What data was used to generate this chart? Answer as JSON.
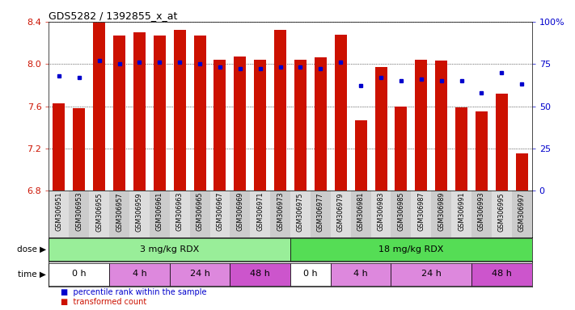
{
  "title": "GDS5282 / 1392855_x_at",
  "samples": [
    "GSM306951",
    "GSM306953",
    "GSM306955",
    "GSM306957",
    "GSM306959",
    "GSM306961",
    "GSM306963",
    "GSM306965",
    "GSM306967",
    "GSM306969",
    "GSM306971",
    "GSM306973",
    "GSM306975",
    "GSM306977",
    "GSM306979",
    "GSM306981",
    "GSM306983",
    "GSM306985",
    "GSM306987",
    "GSM306989",
    "GSM306991",
    "GSM306993",
    "GSM306995",
    "GSM306997"
  ],
  "transformed_count": [
    7.63,
    7.58,
    8.39,
    8.27,
    8.3,
    8.27,
    8.32,
    8.27,
    8.04,
    8.07,
    8.04,
    8.32,
    8.04,
    8.06,
    8.28,
    7.47,
    7.97,
    7.6,
    8.04,
    8.03,
    7.59,
    7.55,
    7.72,
    7.15
  ],
  "percentile_rank": [
    68,
    67,
    77,
    75,
    76,
    76,
    76,
    75,
    73,
    72,
    72,
    73,
    73,
    72,
    76,
    62,
    67,
    65,
    66,
    65,
    65,
    58,
    70,
    63
  ],
  "ylim_left": [
    6.8,
    8.4
  ],
  "ylim_right": [
    0,
    100
  ],
  "yticks_left": [
    6.8,
    7.2,
    7.6,
    8.0,
    8.4
  ],
  "yticks_right": [
    0,
    25,
    50,
    75,
    100
  ],
  "bar_color": "#cc1100",
  "dot_color": "#0000cc",
  "background_color": "#ffffff",
  "dose_groups": [
    {
      "label": "3 mg/kg RDX",
      "start": 0,
      "end": 11,
      "color": "#99ee99"
    },
    {
      "label": "18 mg/kg RDX",
      "start": 12,
      "end": 23,
      "color": "#55dd55"
    }
  ],
  "time_groups": [
    {
      "label": "0 h",
      "start": 0,
      "end": 2,
      "color": "#ffffff"
    },
    {
      "label": "4 h",
      "start": 3,
      "end": 5,
      "color": "#dd88dd"
    },
    {
      "label": "24 h",
      "start": 6,
      "end": 8,
      "color": "#dd88dd"
    },
    {
      "label": "48 h",
      "start": 9,
      "end": 11,
      "color": "#cc55cc"
    },
    {
      "label": "0 h",
      "start": 12,
      "end": 13,
      "color": "#ffffff"
    },
    {
      "label": "4 h",
      "start": 14,
      "end": 16,
      "color": "#dd88dd"
    },
    {
      "label": "24 h",
      "start": 17,
      "end": 20,
      "color": "#dd88dd"
    },
    {
      "label": "48 h",
      "start": 21,
      "end": 23,
      "color": "#cc55cc"
    }
  ],
  "legend_items": [
    {
      "label": "transformed count",
      "color": "#cc1100"
    },
    {
      "label": "percentile rank within the sample",
      "color": "#0000cc"
    }
  ]
}
